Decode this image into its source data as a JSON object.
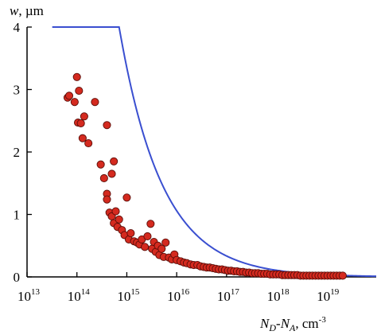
{
  "chart_data": {
    "type": "scatter",
    "title": "",
    "xscale": "log",
    "xlim": [
      10000000000000.0,
      1e+20
    ],
    "ylim": [
      0,
      4
    ],
    "xlabel": {
      "base1": "N",
      "sub1": "D",
      "dash": "-",
      "base2": "N",
      "sub2": "A",
      "unit": ", cm",
      "unit_exp": "-3"
    },
    "ylabel": {
      "symbol": "w",
      "unit": ", µm"
    },
    "y_ticks": [
      0,
      1,
      2,
      3,
      4
    ],
    "x_tick_labels": [
      {
        "mantissa": "10",
        "exponent": "13",
        "value": 10000000000000.0
      },
      {
        "mantissa": "10",
        "exponent": "14",
        "value": 100000000000000.0
      },
      {
        "mantissa": "10",
        "exponent": "15",
        "value": 1000000000000000.0
      },
      {
        "mantissa": "10",
        "exponent": "16",
        "value": 1e+16
      },
      {
        "mantissa": "10",
        "exponent": "17",
        "value": 1e+17
      },
      {
        "mantissa": "10",
        "exponent": "18",
        "value": 1e+18
      },
      {
        "mantissa": "10",
        "exponent": "19",
        "value": 1e+19
      }
    ],
    "grid": false,
    "legend": "none",
    "colors": {
      "points": "#d42a1f",
      "point_edge": "#5a0d08",
      "curve": "#3a4fd0",
      "axis": "#000000"
    },
    "points": [
      [
        65000000000000.0,
        2.87
      ],
      [
        70000000000000.0,
        2.9
      ],
      [
        90000000000000.0,
        2.8
      ],
      [
        100000000000000.0,
        3.2
      ],
      [
        110000000000000.0,
        2.98
      ],
      [
        105000000000000.0,
        2.47
      ],
      [
        120000000000000.0,
        2.46
      ],
      [
        140000000000000.0,
        2.57
      ],
      [
        130000000000000.0,
        2.22
      ],
      [
        170000000000000.0,
        2.14
      ],
      [
        230000000000000.0,
        2.8
      ],
      [
        300000000000000.0,
        1.8
      ],
      [
        400000000000000.0,
        2.43
      ],
      [
        350000000000000.0,
        1.58
      ],
      [
        500000000000000.0,
        1.65
      ],
      [
        550000000000000.0,
        1.85
      ],
      [
        400000000000000.0,
        1.33
      ],
      [
        400000000000000.0,
        1.24
      ],
      [
        450000000000000.0,
        1.03
      ],
      [
        500000000000000.0,
        0.97
      ],
      [
        600000000000000.0,
        1.05
      ],
      [
        550000000000000.0,
        0.86
      ],
      [
        650000000000000.0,
        0.8
      ],
      [
        700000000000000.0,
        0.92
      ],
      [
        800000000000000.0,
        0.75
      ],
      [
        900000000000000.0,
        0.67
      ],
      [
        1000000000000000.0,
        1.27
      ],
      [
        1100000000000000.0,
        0.6
      ],
      [
        1200000000000000.0,
        0.7
      ],
      [
        1400000000000000.0,
        0.57
      ],
      [
        1600000000000000.0,
        0.55
      ],
      [
        1800000000000000.0,
        0.52
      ],
      [
        2000000000000000.0,
        0.6
      ],
      [
        2300000000000000.0,
        0.48
      ],
      [
        2600000000000000.0,
        0.65
      ],
      [
        3000000000000000.0,
        0.85
      ],
      [
        3200000000000000.0,
        0.45
      ],
      [
        3500000000000000.0,
        0.56
      ],
      [
        3800000000000000.0,
        0.4
      ],
      [
        4200000000000000.0,
        0.5
      ],
      [
        4500000000000000.0,
        0.35
      ],
      [
        5000000000000000.0,
        0.45
      ],
      [
        5500000000000000.0,
        0.32
      ],
      [
        6000000000000000.0,
        0.55
      ],
      [
        7000000000000000.0,
        0.31
      ],
      [
        8000000000000000.0,
        0.28
      ],
      [
        9000000000000000.0,
        0.36
      ],
      [
        1e+16,
        0.27
      ],
      [
        1.2e+16,
        0.25
      ],
      [
        1.4e+16,
        0.23
      ],
      [
        1.6e+16,
        0.22
      ],
      [
        1.9e+16,
        0.2
      ],
      [
        2.2e+16,
        0.19
      ],
      [
        2.6e+16,
        0.19
      ],
      [
        3e+16,
        0.17
      ],
      [
        3.5e+16,
        0.16
      ],
      [
        4e+16,
        0.15
      ],
      [
        4.6e+16,
        0.15
      ],
      [
        5.3e+16,
        0.14
      ],
      [
        6.1e+16,
        0.13
      ],
      [
        7e+16,
        0.12
      ],
      [
        8.1e+16,
        0.12
      ],
      [
        9.3e+16,
        0.11
      ],
      [
        1.07e+17,
        0.1
      ],
      [
        1.23e+17,
        0.1
      ],
      [
        1.41e+17,
        0.09
      ],
      [
        1.62e+17,
        0.09
      ],
      [
        1.86e+17,
        0.08
      ],
      [
        2.14e+17,
        0.08
      ],
      [
        2.46e+17,
        0.07
      ],
      [
        2.83e+17,
        0.07
      ],
      [
        3.25e+17,
        0.06
      ],
      [
        3.74e+17,
        0.06
      ],
      [
        4.3e+17,
        0.06
      ],
      [
        4.94e+17,
        0.05
      ],
      [
        5.68e+17,
        0.05
      ],
      [
        6.53e+17,
        0.05
      ],
      [
        7.5e+17,
        0.04
      ],
      [
        8.6e+17,
        0.04
      ],
      [
        9.9e+17,
        0.04
      ],
      [
        1.14e+18,
        0.04
      ],
      [
        1.31e+18,
        0.03
      ],
      [
        1.5e+18,
        0.03
      ],
      [
        1.73e+18,
        0.03
      ],
      [
        1.99e+18,
        0.03
      ],
      [
        2.28e+18,
        0.03
      ],
      [
        2.63e+18,
        0.03
      ],
      [
        3.02e+18,
        0.02
      ],
      [
        3.47e+18,
        0.02
      ],
      [
        3.99e+18,
        0.02
      ],
      [
        4.59e+18,
        0.02
      ],
      [
        5.27e+18,
        0.02
      ],
      [
        6.06e+18,
        0.02
      ],
      [
        6.97e+18,
        0.02
      ],
      [
        8e+18,
        0.02
      ],
      [
        9.2e+18,
        0.02
      ],
      [
        1.06e+19,
        0.02
      ],
      [
        1.22e+19,
        0.02
      ],
      [
        1.4e+19,
        0.02
      ],
      [
        1.61e+19,
        0.02
      ],
      [
        1.85e+19,
        0.02
      ],
      [
        2.13e+19,
        0.02
      ]
    ],
    "curve": {
      "description": "w ∝ (N_D-N_A)^-1/2",
      "coefficient_um": 33.5,
      "exponent": -0.5,
      "x_range": [
        32000000000000.0,
        1e+20
      ]
    }
  }
}
